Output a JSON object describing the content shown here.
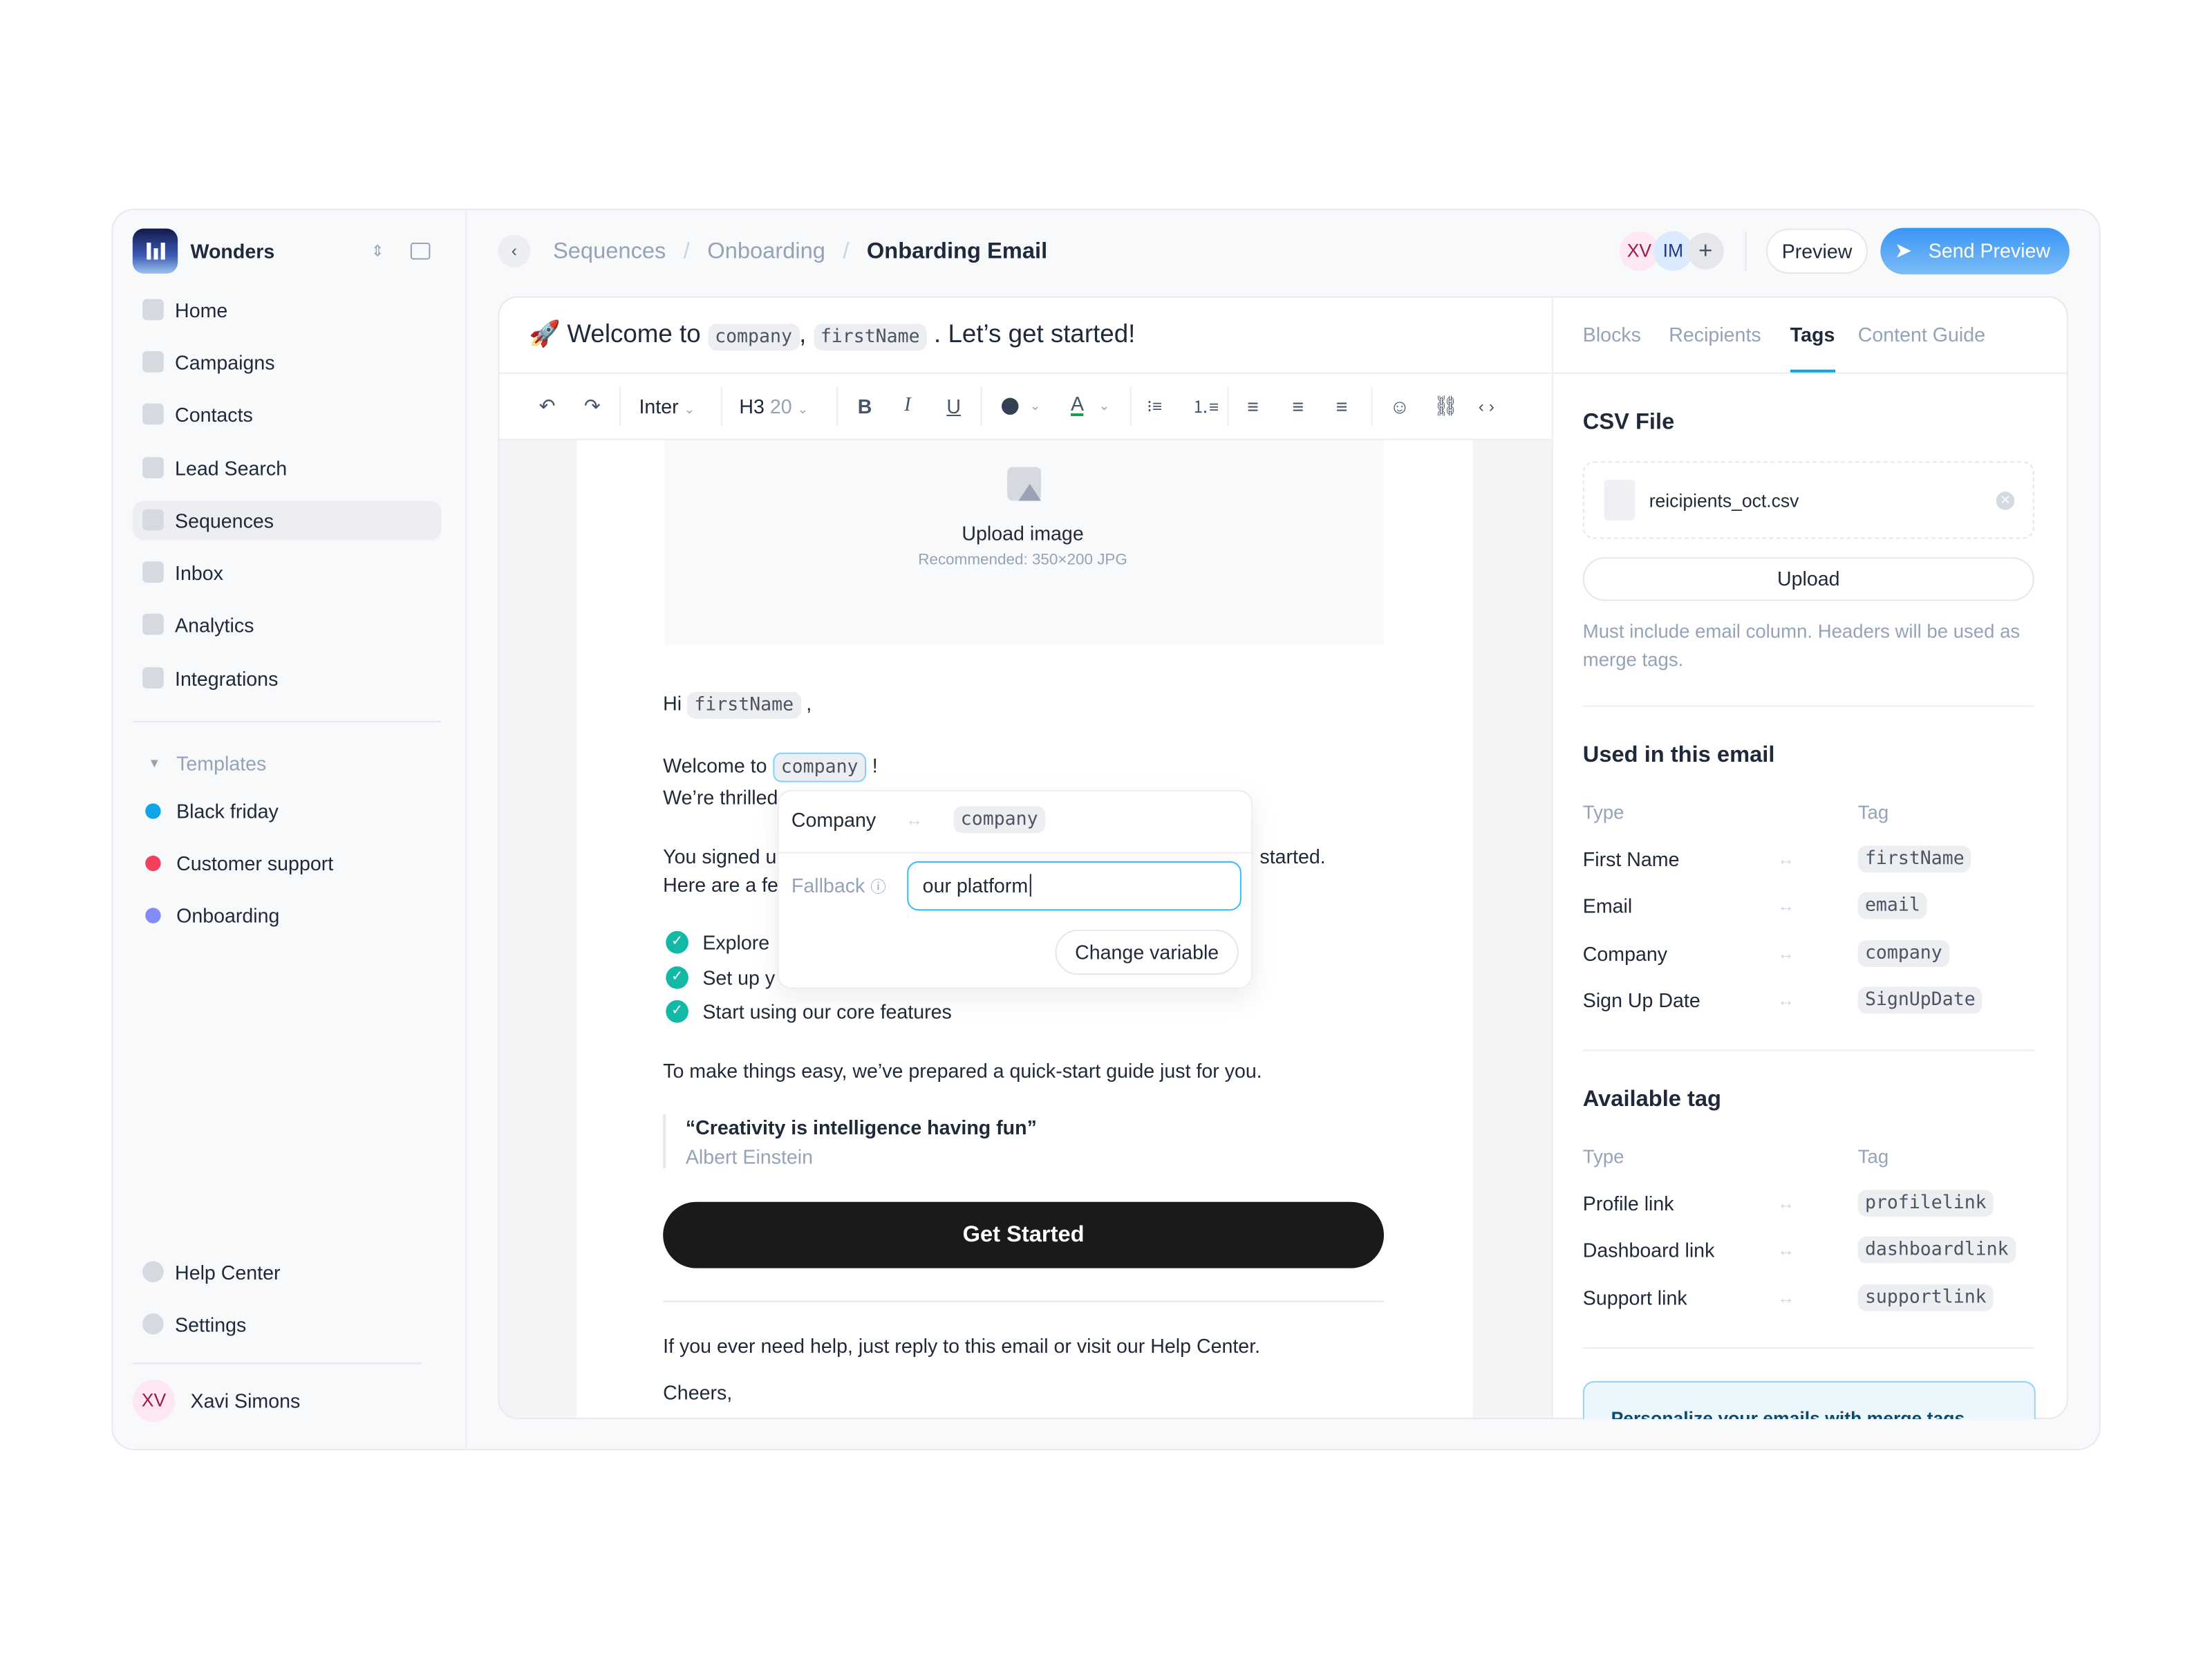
{
  "sidebar": {
    "workspace": "Wonders",
    "items": [
      {
        "label": "Home",
        "icon": "home-icon"
      },
      {
        "label": "Campaigns",
        "icon": "flag-icon"
      },
      {
        "label": "Contacts",
        "icon": "contacts-icon"
      },
      {
        "label": "Lead Search",
        "icon": "lead-search-icon"
      },
      {
        "label": "Sequences",
        "icon": "sequences-icon",
        "active": true
      },
      {
        "label": "Inbox",
        "icon": "inbox-icon"
      },
      {
        "label": "Analytics",
        "icon": "analytics-icon"
      },
      {
        "label": "Integrations",
        "icon": "integrations-icon"
      }
    ],
    "templates_label": "Templates",
    "templates": [
      {
        "label": "Black friday",
        "color": "#0ea5e9"
      },
      {
        "label": "Customer support",
        "color": "#f43f5e"
      },
      {
        "label": "Onboarding",
        "color": "#818cf8"
      }
    ],
    "footer": [
      {
        "label": "Help Center",
        "icon": "headset-icon"
      },
      {
        "label": "Settings",
        "icon": "gear-icon"
      }
    ],
    "user": {
      "initials": "XV",
      "name": "Xavi Simons"
    }
  },
  "header": {
    "breadcrumb": [
      "Sequences",
      "Onboarding",
      "Onbarding Email"
    ],
    "collaborators": [
      "XV",
      "IM"
    ],
    "preview_label": "Preview",
    "send_preview_label": "Send Preview",
    "accent": "#3b9cf5"
  },
  "editor": {
    "subject": {
      "prefix": "Welcome to",
      "tag1": "company",
      "sep": ",",
      "tag2": "firstName",
      "suffix": ". Let’s get started!"
    },
    "toolbar": {
      "font": "Inter",
      "heading": "H3",
      "size": "20"
    },
    "image": {
      "title": "Upload image",
      "hint": "Recommended: 350×200 JPG"
    },
    "greeting": "Hi",
    "greeting_tag": "firstName",
    "greeting_end": ",",
    "welcome": "Welcome to",
    "welcome_tag": "company",
    "welcome_end": "!",
    "thrilled": "We’re thrilled",
    "signed": "You signed u",
    "signed_end": "started.",
    "here": "Here are a fe",
    "bullets": [
      "Explore",
      "Set up y",
      "Start using our core features"
    ],
    "guide": "To make things easy, we’ve prepared a quick-start guide just for you.",
    "quote": "“Creativity is intelligence having fun”",
    "quote_author": "Albert Einstein",
    "cta": "Get Started",
    "help": "If you ever need help, just reply to this email or visit our Help Center.",
    "signoff": "Cheers,"
  },
  "popup": {
    "type": "Company",
    "tag": "company",
    "fallback_label": "Fallback",
    "fallback_value": "our platform",
    "change_label": "Change variable"
  },
  "panel": {
    "tabs": [
      "Blocks",
      "Recipients",
      "Tags",
      "Content Guide"
    ],
    "active_tab": "Tags",
    "csv_title": "CSV File",
    "file_name": "reicipients_oct.csv",
    "upload_label": "Upload",
    "hint": "Must include email column. Headers will be used as merge tags.",
    "used_title": "Used in this email",
    "col_type": "Type",
    "col_tag": "Tag",
    "used": [
      {
        "type": "First Name",
        "tag": "firstName"
      },
      {
        "type": "Email",
        "tag": "email"
      },
      {
        "type": "Company",
        "tag": "company"
      },
      {
        "type": "Sign Up Date",
        "tag": "SignUpDate"
      }
    ],
    "available_title": "Available tag",
    "available": [
      {
        "type": "Profile link",
        "tag": "profilelink"
      },
      {
        "type": "Dashboard link",
        "tag": "dashboardlink"
      },
      {
        "type": "Support link",
        "tag": "supportlink"
      }
    ],
    "info_text": "Personalize your emails with merge tags"
  }
}
